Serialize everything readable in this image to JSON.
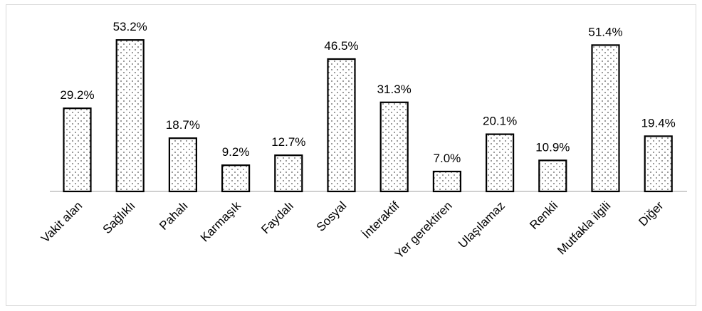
{
  "chart_data": {
    "type": "bar",
    "title": "",
    "xlabel": "",
    "ylabel": "",
    "ylim": [
      0,
      60
    ],
    "grid": false,
    "legend": "none",
    "bar_pattern": "dotted",
    "colors": {
      "bar_stroke": "#000000",
      "pattern_dot": "#555555",
      "axis": "#bfbfbf",
      "border": "#d9d9d9"
    },
    "categories": [
      "Vakit alan",
      "Sağlıklı",
      "Pahalı",
      "Karmaşık",
      "Faydalı",
      "Sosyal",
      "İnteraktif",
      "Yer gerektiren",
      "Ulaşılamaz",
      "Renkli",
      "Mutfakla ilgili",
      "Diğer"
    ],
    "values": [
      29.2,
      53.2,
      18.7,
      9.2,
      12.7,
      46.5,
      31.3,
      7.0,
      20.1,
      10.9,
      51.4,
      19.4
    ],
    "data_labels": [
      "29.2%",
      "53.2%",
      "18.7%",
      "9.2%",
      "12.7%",
      "46.5%",
      "31.3%",
      "7.0%",
      "20.1%",
      "10.9%",
      "51.4%",
      "19.4%"
    ]
  }
}
